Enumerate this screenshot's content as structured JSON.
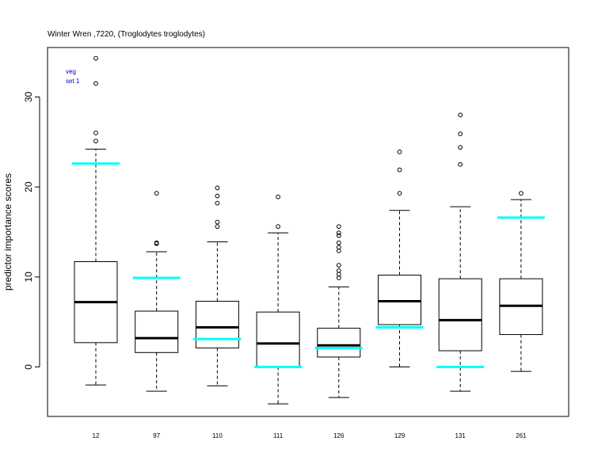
{
  "chart_data": {
    "type": "boxplot",
    "title": "Winter Wren ,7220, (Troglodytes troglodytes)",
    "ylabel": "predictor importance scores",
    "xlabel": "",
    "ylim": [
      -5.5,
      35.5
    ],
    "yticks": [
      0,
      10,
      20,
      30
    ],
    "legend": {
      "position": "top-left",
      "lines": [
        "veg",
        "set 1"
      ]
    },
    "colors": {
      "box": "#000000",
      "median": "#000000",
      "reference": "#00ffff",
      "legend_text": "#0000cc"
    },
    "categories": [
      "12",
      "97",
      "110",
      "111",
      "126",
      "129",
      "131",
      "261"
    ],
    "boxes": [
      {
        "category": "12",
        "whisker_low": -2.0,
        "q1": 2.7,
        "median": 7.2,
        "q3": 11.7,
        "whisker_high": 24.2,
        "outliers": [
          25.1,
          26.0,
          31.5,
          34.3
        ],
        "reference": 22.6
      },
      {
        "category": "97",
        "whisker_low": -2.7,
        "q1": 1.6,
        "median": 3.2,
        "q3": 6.2,
        "whisker_high": 12.8,
        "outliers": [
          13.7,
          13.8,
          19.3
        ],
        "reference": 9.9
      },
      {
        "category": "110",
        "whisker_low": -2.1,
        "q1": 2.1,
        "median": 4.4,
        "q3": 7.3,
        "whisker_high": 13.9,
        "outliers": [
          15.6,
          16.1,
          18.2,
          19.0,
          19.9
        ],
        "reference": 3.1
      },
      {
        "category": "111",
        "whisker_low": -4.1,
        "q1": 0.0,
        "median": 2.6,
        "q3": 6.1,
        "whisker_high": 14.9,
        "outliers": [
          15.6,
          18.9
        ],
        "reference": 0.0
      },
      {
        "category": "126",
        "whisker_low": -3.4,
        "q1": 1.1,
        "median": 2.4,
        "q3": 4.3,
        "whisker_high": 8.9,
        "outliers": [
          9.9,
          10.3,
          10.7,
          11.3,
          12.9,
          13.3,
          13.8,
          14.6,
          14.9,
          15.6
        ],
        "reference": 2.1
      },
      {
        "category": "129",
        "whisker_low": 0.0,
        "q1": 4.7,
        "median": 7.3,
        "q3": 10.2,
        "whisker_high": 17.4,
        "outliers": [
          19.3,
          21.9,
          23.9
        ],
        "reference": 4.4
      },
      {
        "category": "131",
        "whisker_low": -2.7,
        "q1": 1.8,
        "median": 5.2,
        "q3": 9.8,
        "whisker_high": 17.8,
        "outliers": [
          22.5,
          24.4,
          25.9,
          28.0
        ],
        "reference": 0.0
      },
      {
        "category": "261",
        "whisker_low": -0.5,
        "q1": 3.6,
        "median": 6.8,
        "q3": 9.8,
        "whisker_high": 18.6,
        "outliers": [
          19.3
        ],
        "reference": 16.6
      }
    ]
  }
}
